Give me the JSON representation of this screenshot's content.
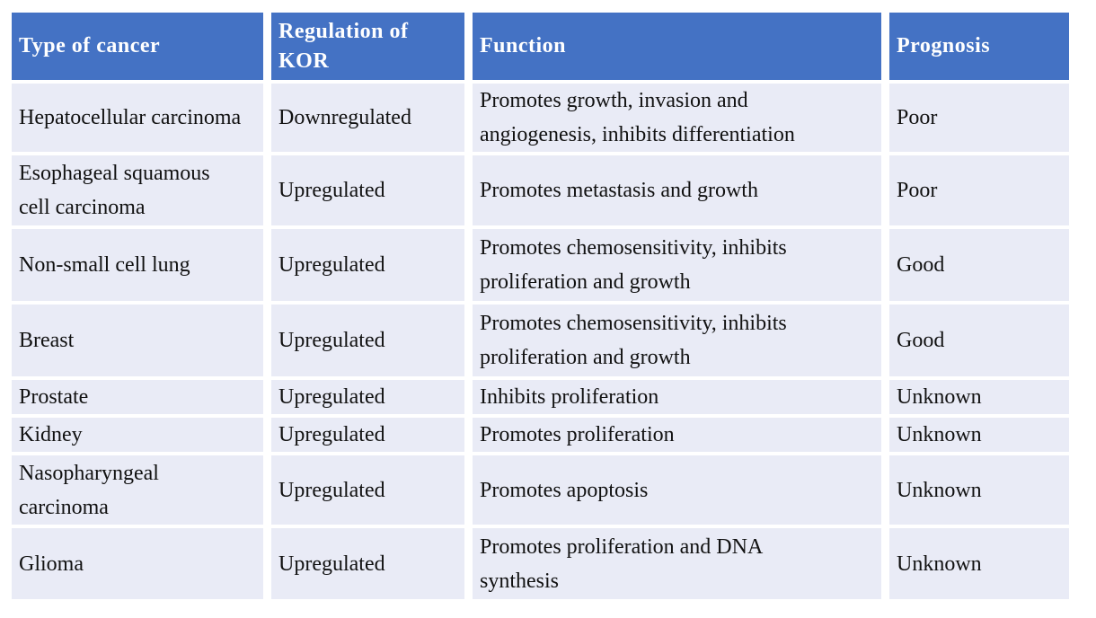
{
  "colors": {
    "header_bg": "#4472C4",
    "header_text": "#FFFFFF",
    "row_bg": "#E9EBF6",
    "body_text": "#111111",
    "gridline": "#FFFFFF"
  },
  "table": {
    "columns": [
      {
        "label": "Type of cancer"
      },
      {
        "label": "Regulation of KOR"
      },
      {
        "label": "Function"
      },
      {
        "label": "Prognosis"
      }
    ],
    "rows": [
      {
        "cancer": "Hepatocellular carcinoma",
        "regulation": "Downregulated",
        "function": "Promotes growth, invasion and angiogenesis, inhibits differentiation",
        "prognosis": "Poor"
      },
      {
        "cancer": "Esophageal squamous cell carcinoma",
        "regulation": "Upregulated",
        "function": "Promotes metastasis and growth",
        "prognosis": "Poor"
      },
      {
        "cancer": "Non-small cell lung",
        "regulation": "Upregulated",
        "function": "Promotes chemosensitivity, inhibits proliferation and growth",
        "prognosis": "Good"
      },
      {
        "cancer": "Breast",
        "regulation": "Upregulated",
        "function": "Promotes chemosensitivity, inhibits proliferation and growth",
        "prognosis": "Good"
      },
      {
        "cancer": "Prostate",
        "regulation": "Upregulated",
        "function": "Inhibits proliferation",
        "prognosis": "Unknown"
      },
      {
        "cancer": "Kidney",
        "regulation": "Upregulated",
        "function": "Promotes proliferation",
        "prognosis": "Unknown"
      },
      {
        "cancer": "Nasopharyngeal carcinoma",
        "regulation": "Upregulated",
        "function": "Promotes apoptosis",
        "prognosis": "Unknown"
      },
      {
        "cancer": "Glioma",
        "regulation": "Upregulated",
        "function": "Promotes proliferation and DNA synthesis",
        "prognosis": "Unknown"
      }
    ]
  }
}
